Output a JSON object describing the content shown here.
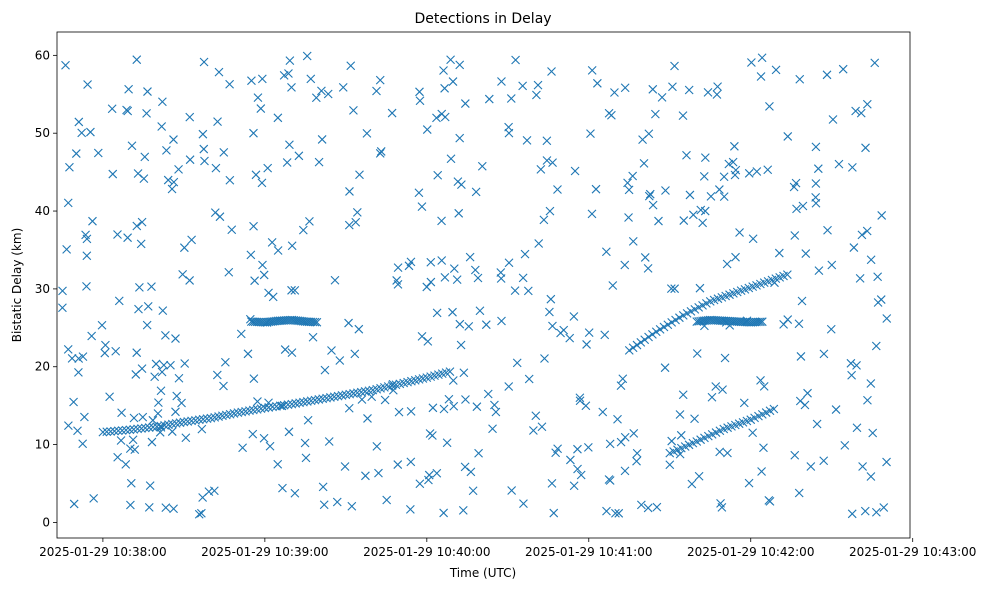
{
  "chart_data": {
    "type": "scatter",
    "title": "Detections in Delay",
    "xlabel": "Time (UTC)",
    "ylabel": "Bistatic Delay (km)",
    "marker": "x",
    "color": "#1f77b4",
    "grid": false,
    "legend": "none",
    "xlim": [
      "2025-01-29 10:37:43",
      "2025-01-29 10:42:59"
    ],
    "ylim": [
      -2,
      63
    ],
    "x_ticks": [
      "2025-01-29 10:38:00",
      "2025-01-29 10:39:00",
      "2025-01-29 10:40:00",
      "2025-01-29 10:41:00",
      "2025-01-29 10:42:00",
      "2025-01-29 10:43:00"
    ],
    "y_ticks": [
      "0",
      "10",
      "20",
      "30",
      "40",
      "50",
      "60"
    ],
    "tracks": [
      {
        "t": [
          "2025-01-29 10:38:00",
          "2025-01-29 10:38:10",
          "2025-01-29 10:38:20",
          "2025-01-29 10:38:30",
          "2025-01-29 10:38:40",
          "2025-01-29 10:38:50",
          "2025-01-29 10:39:00",
          "2025-01-29 10:39:10",
          "2025-01-29 10:39:20",
          "2025-01-29 10:39:30",
          "2025-01-29 10:39:40",
          "2025-01-29 10:39:50",
          "2025-01-29 10:40:00",
          "2025-01-29 10:40:10"
        ],
        "y": [
          11.6,
          11.9,
          12.3,
          12.9,
          13.4,
          14.1,
          14.7,
          15.2,
          15.8,
          16.4,
          17.0,
          17.8,
          18.6,
          19.5
        ]
      },
      {
        "t": [
          "2025-01-29 10:38:55",
          "2025-01-29 10:39:00",
          "2025-01-29 10:39:05",
          "2025-01-29 10:39:10",
          "2025-01-29 10:39:15",
          "2025-01-29 10:39:20"
        ],
        "y": [
          25.8,
          25.7,
          25.9,
          26.0,
          25.8,
          25.7
        ]
      },
      {
        "t": [
          "2025-01-29 10:41:40",
          "2025-01-29 10:41:45",
          "2025-01-29 10:41:50",
          "2025-01-29 10:41:55",
          "2025-01-29 10:42:00",
          "2025-01-29 10:42:05"
        ],
        "y": [
          25.8,
          26.0,
          25.9,
          25.8,
          25.7,
          25.8
        ]
      },
      {
        "t": [
          "2025-01-29 10:41:15",
          "2025-01-29 10:41:25",
          "2025-01-29 10:41:35",
          "2025-01-29 10:41:45",
          "2025-01-29 10:41:55",
          "2025-01-29 10:42:05",
          "2025-01-29 10:42:15"
        ],
        "y": [
          22.1,
          24.5,
          26.6,
          28.4,
          29.6,
          30.8,
          32.0
        ]
      },
      {
        "t": [
          "2025-01-29 10:41:30",
          "2025-01-29 10:41:40",
          "2025-01-29 10:41:50",
          "2025-01-29 10:42:00",
          "2025-01-29 10:42:10"
        ],
        "y": [
          8.9,
          10.4,
          12.0,
          13.2,
          14.8
        ]
      }
    ]
  }
}
